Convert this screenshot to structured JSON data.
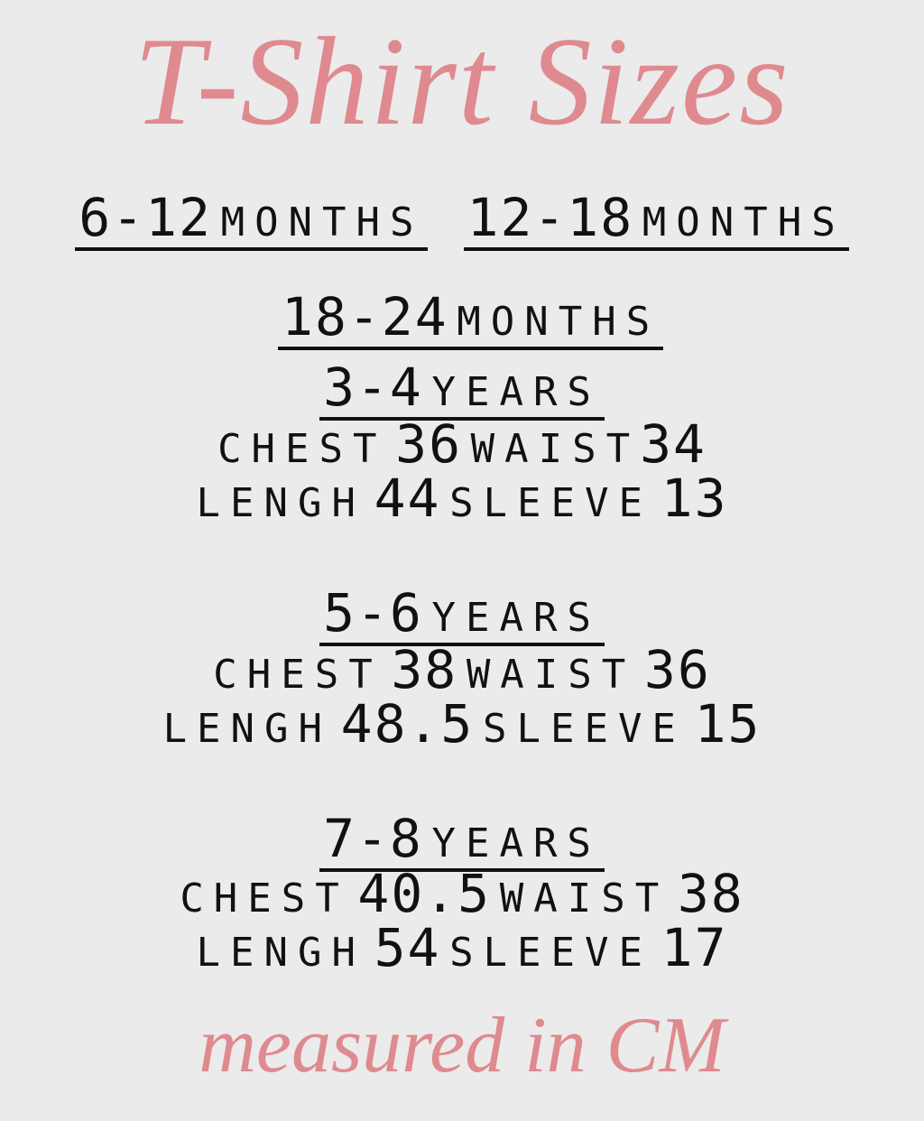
{
  "title": "T-Shirt Sizes",
  "accent_color": "#df8a8f",
  "age_ranges": [
    {
      "num": "6-12",
      "unit": "MONTHS"
    },
    {
      "num": "12-18",
      "unit": "MONTHS"
    },
    {
      "num": "18-24",
      "unit": "MONTHS"
    }
  ],
  "sizes": [
    {
      "num": "3-4",
      "unit": "YEARS",
      "chest_label": "CHEST",
      "chest": "36",
      "waist_label": "WAIST",
      "waist": "34",
      "length_label": "LENGH",
      "length": "44",
      "sleeve_label": "SLEEVE",
      "sleeve": "13"
    },
    {
      "num": "5-6",
      "unit": "YEARS",
      "chest_label": "CHEST",
      "chest": "38",
      "waist_label": "WAIST",
      "waist": "36",
      "length_label": "LENGH",
      "length": "48.5",
      "sleeve_label": "SLEEVE",
      "sleeve": "15"
    },
    {
      "num": "7-8",
      "unit": "YEARS",
      "chest_label": "CHEST",
      "chest": "40.5",
      "waist_label": "WAIST",
      "waist": "38",
      "length_label": "LENGH",
      "length": "54",
      "sleeve_label": "SLEEVE",
      "sleeve": "17"
    }
  ],
  "footer": "measured in CM"
}
